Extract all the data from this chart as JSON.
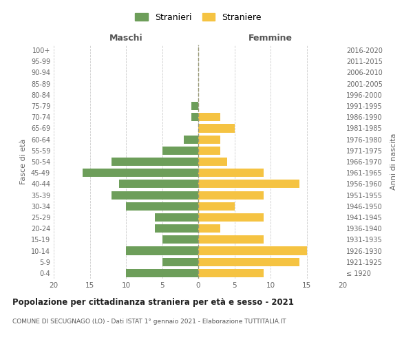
{
  "age_groups": [
    "100+",
    "95-99",
    "90-94",
    "85-89",
    "80-84",
    "75-79",
    "70-74",
    "65-69",
    "60-64",
    "55-59",
    "50-54",
    "45-49",
    "40-44",
    "35-39",
    "30-34",
    "25-29",
    "20-24",
    "15-19",
    "10-14",
    "5-9",
    "0-4"
  ],
  "birth_years": [
    "≤ 1920",
    "1921-1925",
    "1926-1930",
    "1931-1935",
    "1936-1940",
    "1941-1945",
    "1946-1950",
    "1951-1955",
    "1956-1960",
    "1961-1965",
    "1966-1970",
    "1971-1975",
    "1976-1980",
    "1981-1985",
    "1986-1990",
    "1991-1995",
    "1996-2000",
    "2001-2005",
    "2006-2010",
    "2011-2015",
    "2016-2020"
  ],
  "males": [
    0,
    0,
    0,
    0,
    0,
    1,
    1,
    0,
    2,
    5,
    12,
    16,
    11,
    12,
    10,
    6,
    6,
    5,
    10,
    5,
    10
  ],
  "females": [
    0,
    0,
    0,
    0,
    0,
    0,
    3,
    5,
    3,
    3,
    4,
    9,
    14,
    9,
    5,
    9,
    3,
    9,
    15,
    14,
    9
  ],
  "male_color": "#6d9e5a",
  "female_color": "#f5c342",
  "grid_color": "#cccccc",
  "dashed_line_color": "#999977",
  "title": "Popolazione per cittadinanza straniera per età e sesso - 2021",
  "subtitle": "COMUNE DI SECUGNAGO (LO) - Dati ISTAT 1° gennaio 2021 - Elaborazione TUTTITALIA.IT",
  "xlabel_left": "Maschi",
  "xlabel_right": "Femmine",
  "ylabel_left": "Fasce di età",
  "ylabel_right": "Anni di nascita",
  "legend_stranieri": "Stranieri",
  "legend_straniere": "Straniere",
  "xlim": 20,
  "background_color": "#ffffff",
  "fig_width": 6.0,
  "fig_height": 5.0
}
